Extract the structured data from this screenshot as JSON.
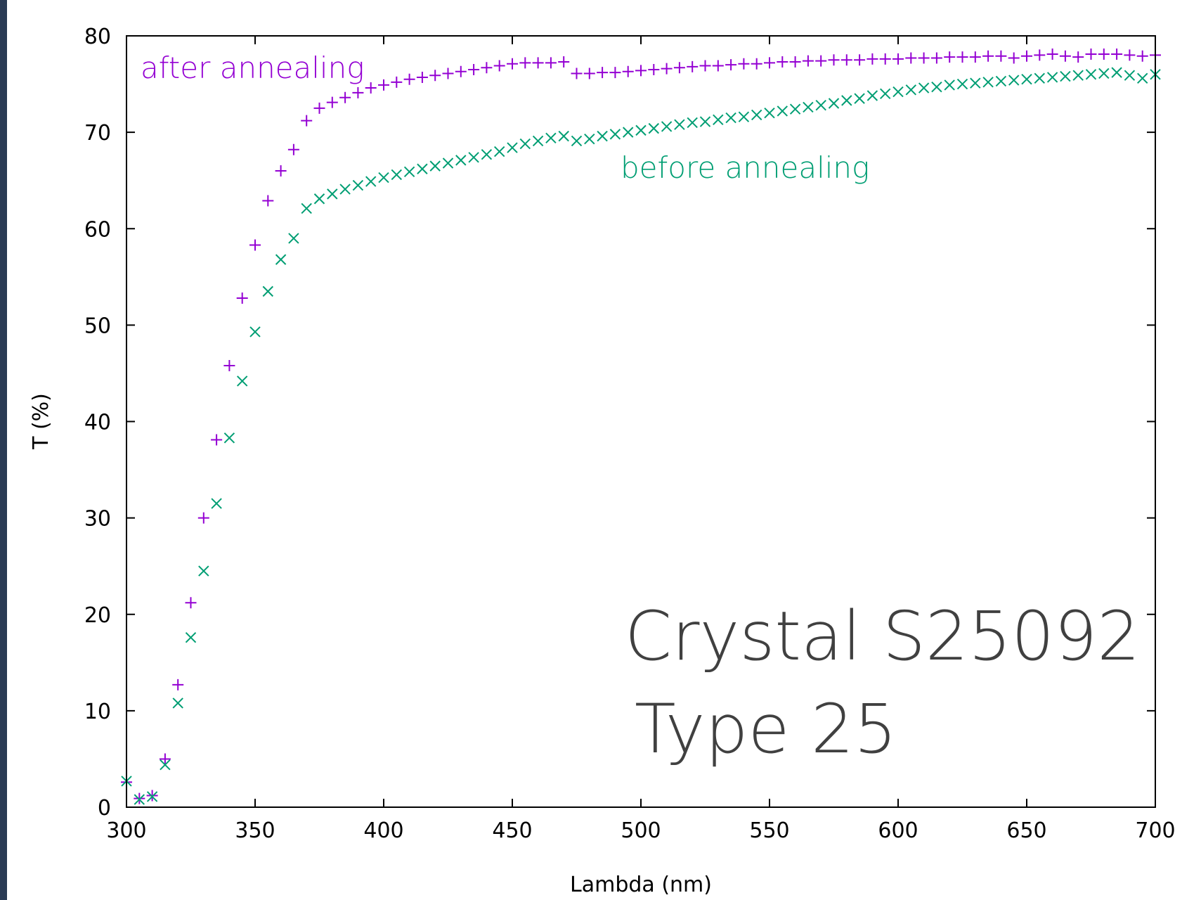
{
  "chart_data": {
    "type": "scatter",
    "xlabel": "Lambda (nm)",
    "ylabel": "T (%)",
    "xlim": [
      300,
      700
    ],
    "ylim": [
      0,
      80
    ],
    "x_ticks": [
      300,
      350,
      400,
      450,
      500,
      550,
      600,
      650,
      700
    ],
    "y_ticks": [
      0,
      10,
      20,
      30,
      40,
      50,
      60,
      70,
      80
    ],
    "grid": false,
    "annotations": [
      {
        "text": "after annealing",
        "color": "#9400d3"
      },
      {
        "text": "before annealing",
        "color": "#009e73"
      },
      {
        "text": "Crystal S25092",
        "color": "#404040"
      },
      {
        "text": "Type 25",
        "color": "#404040"
      }
    ],
    "series": [
      {
        "marker": "plus",
        "color": "#9400d3",
        "x": [
          300,
          305,
          310,
          315,
          320,
          325,
          330,
          335,
          340,
          345,
          350,
          355,
          360,
          365,
          370,
          375,
          380,
          385,
          390,
          395,
          400,
          405,
          410,
          415,
          420,
          425,
          430,
          435,
          440,
          445,
          450,
          455,
          460,
          465,
          470,
          475,
          480,
          485,
          490,
          495,
          500,
          505,
          510,
          515,
          520,
          525,
          530,
          535,
          540,
          545,
          550,
          555,
          560,
          565,
          570,
          575,
          580,
          585,
          590,
          595,
          600,
          605,
          610,
          615,
          620,
          625,
          630,
          635,
          640,
          645,
          650,
          655,
          660,
          665,
          670,
          675,
          680,
          685,
          690,
          695,
          700
        ],
        "values": [
          2.6,
          0.9,
          1.2,
          5.0,
          12.7,
          21.2,
          30.0,
          38.1,
          45.8,
          52.8,
          58.3,
          62.9,
          66.0,
          68.2,
          71.2,
          72.5,
          73.1,
          73.6,
          74.1,
          74.6,
          74.9,
          75.2,
          75.5,
          75.7,
          75.9,
          76.1,
          76.3,
          76.5,
          76.7,
          76.9,
          77.1,
          77.2,
          77.2,
          77.2,
          77.3,
          76.1,
          76.1,
          76.2,
          76.2,
          76.3,
          76.4,
          76.5,
          76.6,
          76.7,
          76.8,
          76.9,
          76.9,
          77.0,
          77.1,
          77.1,
          77.2,
          77.3,
          77.3,
          77.4,
          77.4,
          77.5,
          77.5,
          77.5,
          77.6,
          77.6,
          77.6,
          77.7,
          77.7,
          77.7,
          77.8,
          77.8,
          77.8,
          77.9,
          77.9,
          77.7,
          77.9,
          78.0,
          78.1,
          77.9,
          77.8,
          78.1,
          78.1,
          78.1,
          78.0,
          77.9,
          78.0
        ]
      },
      {
        "marker": "cross",
        "color": "#009e73",
        "x": [
          300,
          305,
          310,
          315,
          320,
          325,
          330,
          335,
          340,
          345,
          350,
          355,
          360,
          365,
          370,
          375,
          380,
          385,
          390,
          395,
          400,
          405,
          410,
          415,
          420,
          425,
          430,
          435,
          440,
          445,
          450,
          455,
          460,
          465,
          470,
          475,
          480,
          485,
          490,
          495,
          500,
          505,
          510,
          515,
          520,
          525,
          530,
          535,
          540,
          545,
          550,
          555,
          560,
          565,
          570,
          575,
          580,
          585,
          590,
          595,
          600,
          605,
          610,
          615,
          620,
          625,
          630,
          635,
          640,
          645,
          650,
          655,
          660,
          665,
          670,
          675,
          680,
          685,
          690,
          695,
          700
        ],
        "values": [
          2.7,
          0.8,
          1.1,
          4.4,
          10.8,
          17.6,
          24.5,
          31.5,
          38.3,
          44.2,
          49.3,
          53.5,
          56.8,
          59.0,
          62.1,
          63.1,
          63.6,
          64.1,
          64.5,
          64.9,
          65.3,
          65.6,
          65.9,
          66.2,
          66.5,
          66.8,
          67.1,
          67.4,
          67.7,
          68.0,
          68.4,
          68.8,
          69.1,
          69.4,
          69.6,
          69.1,
          69.3,
          69.6,
          69.8,
          70.0,
          70.2,
          70.4,
          70.6,
          70.8,
          71.0,
          71.1,
          71.3,
          71.5,
          71.6,
          71.8,
          72.0,
          72.2,
          72.4,
          72.6,
          72.8,
          73.0,
          73.3,
          73.5,
          73.8,
          74.0,
          74.2,
          74.4,
          74.6,
          74.7,
          74.9,
          75.0,
          75.1,
          75.2,
          75.3,
          75.4,
          75.5,
          75.6,
          75.7,
          75.8,
          75.9,
          76.0,
          76.1,
          76.2,
          75.9,
          75.6,
          76.0
        ]
      }
    ]
  }
}
